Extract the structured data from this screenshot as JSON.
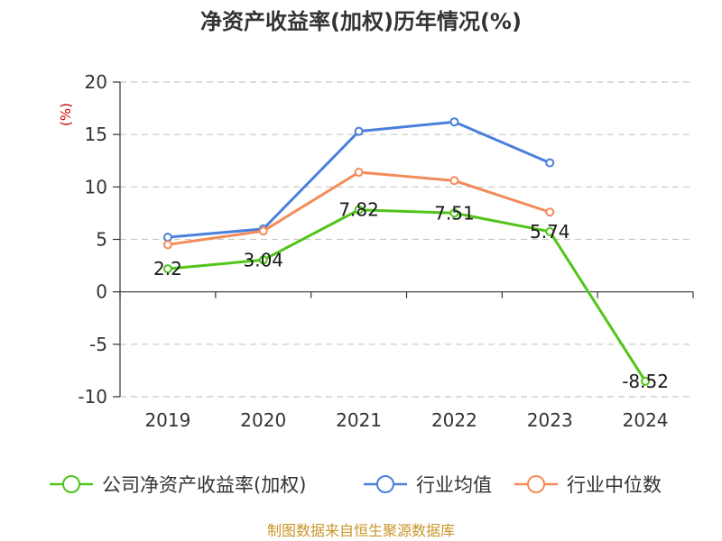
{
  "chart_data": {
    "type": "line",
    "title": "净资产收益率(加权)历年情况(%)",
    "ylabel": "(%)",
    "xlabel": "",
    "categories": [
      "2019",
      "2020",
      "2021",
      "2022",
      "2023",
      "2024"
    ],
    "ylim": [
      -10,
      20
    ],
    "yticks": [
      20,
      15,
      10,
      5,
      0,
      -5,
      -10
    ],
    "grid": true,
    "legend": "bottom",
    "series": [
      {
        "name": "公司净资产收益率(加权)",
        "color": "#52c41a",
        "values": [
          2.2,
          3.04,
          7.82,
          7.51,
          5.74,
          -8.52
        ],
        "labels": [
          "2.2",
          "3.04",
          "7.82",
          "7.51",
          "5.74",
          "-8.52"
        ]
      },
      {
        "name": "行业均值",
        "color": "#4a7fdc",
        "values": [
          5.2,
          6.0,
          15.3,
          16.2,
          12.3,
          null
        ]
      },
      {
        "name": "行业中位数",
        "color": "#f48b5a",
        "values": [
          4.5,
          5.8,
          11.4,
          10.6,
          7.6,
          null
        ]
      }
    ]
  },
  "source": "制图数据来自恒生聚源数据库"
}
